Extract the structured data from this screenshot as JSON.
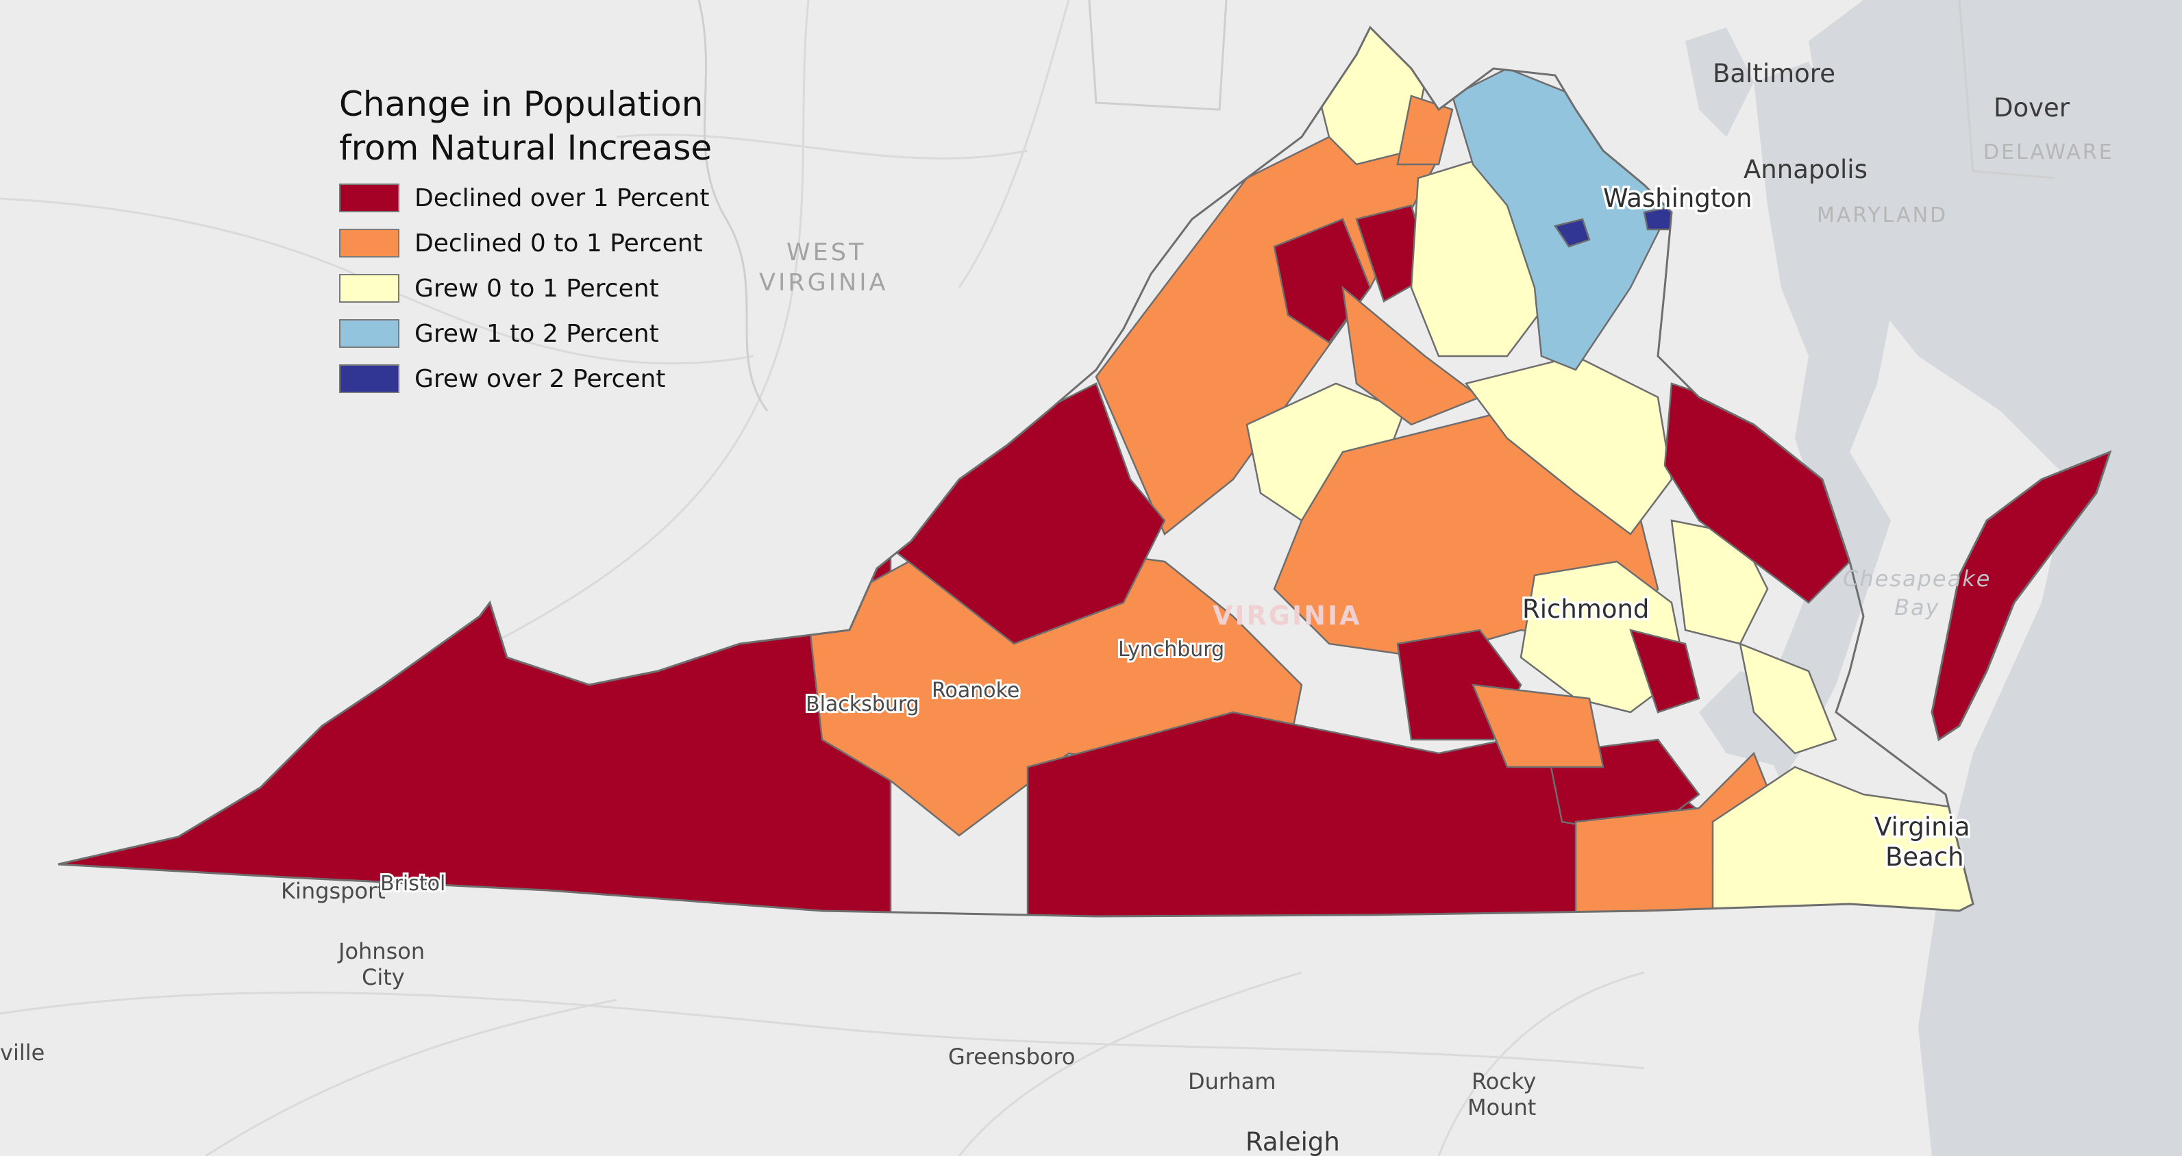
{
  "legend": {
    "title_line1": "Change in Population",
    "title_line2": "from Natural Increase",
    "items": [
      {
        "label": "Declined over 1 Percent",
        "color": "#a50026"
      },
      {
        "label": "Declined 0 to 1 Percent",
        "color": "#f98f4f"
      },
      {
        "label": "Grew 0 to 1 Percent",
        "color": "#ffffc6"
      },
      {
        "label": "Grew 1 to 2 Percent",
        "color": "#92c4de"
      },
      {
        "label": "Grew over 2 Percent",
        "color": "#313695"
      }
    ]
  },
  "labels": {
    "baltimore": "Baltimore",
    "dover": "Dover",
    "delaware": "DELAWARE",
    "annapolis": "Annapolis",
    "washington": "Washington",
    "maryland": "MARYLAND",
    "west_virginia_1": "WEST",
    "west_virginia_2": "VIRGINIA",
    "virginia": "VIRGINIA",
    "chesapeake": "Chesapeake",
    "bay": "Bay",
    "richmond": "Richmond",
    "lynchburg": "Lynchburg",
    "blacksburg": "Blacksburg",
    "roanoke": "Roanoke",
    "virginia_beach_1": "Virginia",
    "virginia_beach_2": "Beach",
    "kingsport": "Kingsport",
    "bristol": "Bristol",
    "johnson_city_1": "Johnson",
    "johnson_city_2": "City",
    "greensboro": "Greensboro",
    "durham": "Durham",
    "rocky_mount_1": "Rocky",
    "rocky_mount_2": "Mount",
    "raleigh": "Raleigh",
    "ville": "ville"
  },
  "colors": {
    "background": "#ececec",
    "water": "#d5d8dc",
    "county_border": "#6e6e6e"
  }
}
